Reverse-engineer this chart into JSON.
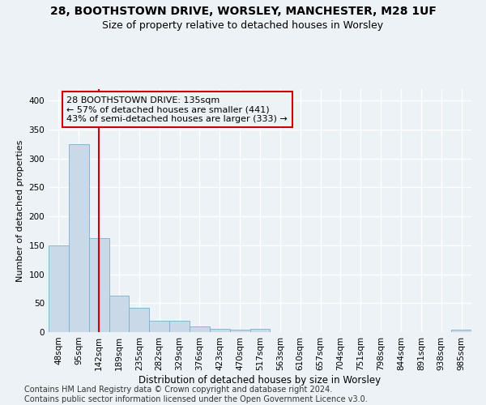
{
  "title1": "28, BOOTHSTOWN DRIVE, WORSLEY, MANCHESTER, M28 1UF",
  "title2": "Size of property relative to detached houses in Worsley",
  "xlabel": "Distribution of detached houses by size in Worsley",
  "ylabel": "Number of detached properties",
  "categories": [
    "48sqm",
    "95sqm",
    "142sqm",
    "189sqm",
    "235sqm",
    "282sqm",
    "329sqm",
    "376sqm",
    "423sqm",
    "470sqm",
    "517sqm",
    "563sqm",
    "610sqm",
    "657sqm",
    "704sqm",
    "751sqm",
    "798sqm",
    "844sqm",
    "891sqm",
    "938sqm",
    "985sqm"
  ],
  "values": [
    150,
    325,
    163,
    63,
    42,
    20,
    20,
    10,
    5,
    4,
    5,
    0,
    0,
    0,
    0,
    0,
    0,
    0,
    0,
    0,
    4
  ],
  "bar_color": "#c9d9e8",
  "bar_edge_color": "#7bafd4",
  "vline_x": 2,
  "vline_color": "#cc0000",
  "annotation_line1": "28 BOOTHSTOWN DRIVE: 135sqm",
  "annotation_line2": "← 57% of detached houses are smaller (441)",
  "annotation_line3": "43% of semi-detached houses are larger (333) →",
  "ylim": [
    0,
    420
  ],
  "yticks": [
    0,
    50,
    100,
    150,
    200,
    250,
    300,
    350,
    400
  ],
  "background_color": "#edf2f7",
  "grid_color": "#ffffff",
  "footer": "Contains HM Land Registry data © Crown copyright and database right 2024.\nContains public sector information licensed under the Open Government Licence v3.0.",
  "title1_fontsize": 10,
  "title2_fontsize": 9,
  "xlabel_fontsize": 8.5,
  "ylabel_fontsize": 8,
  "annotation_fontsize": 8,
  "footer_fontsize": 7,
  "tick_fontsize": 7.5
}
